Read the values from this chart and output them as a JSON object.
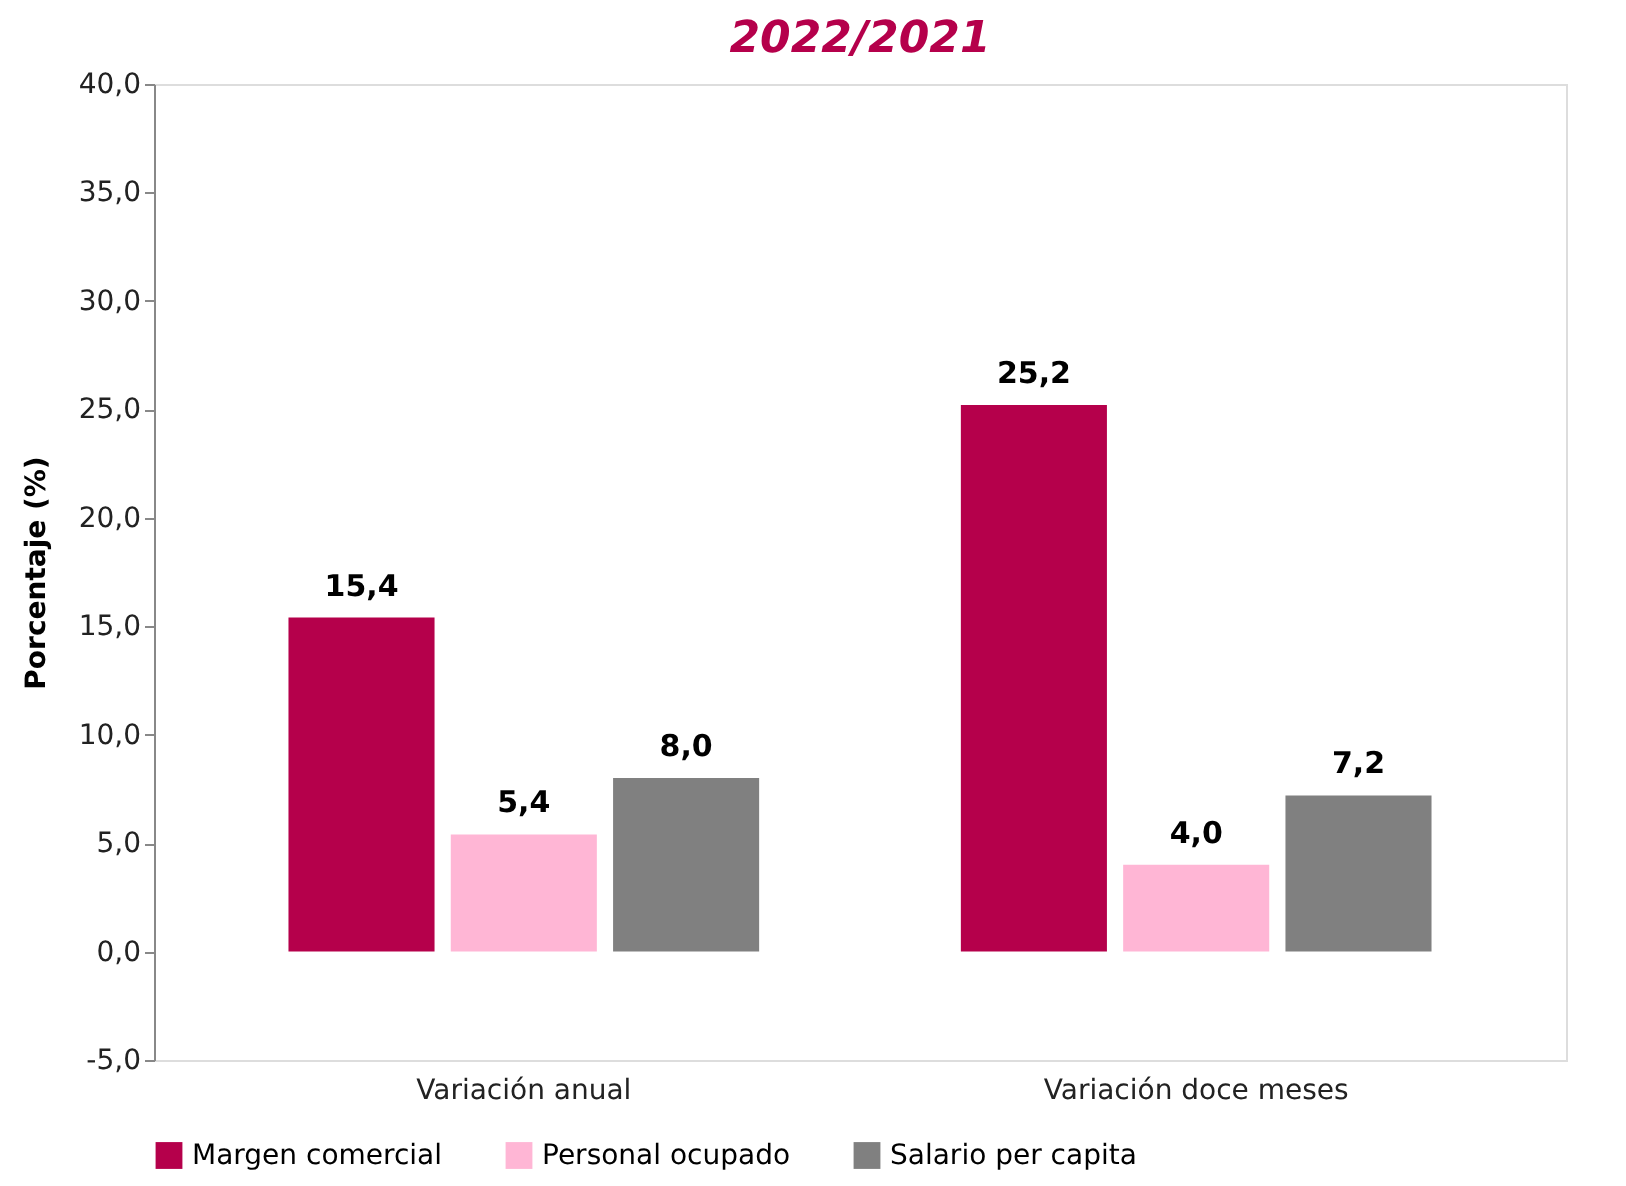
{
  "chart_data": {
    "type": "bar",
    "title": "2022/2021",
    "ylabel": "Porcentaje (%)",
    "categories": [
      "Variación anual",
      "Variación doce meses"
    ],
    "series": [
      {
        "name": "Margen comercial",
        "color": "#b5004b",
        "values": [
          15.4,
          25.2
        ],
        "value_labels": [
          "15,4",
          "25,2"
        ]
      },
      {
        "name": "Personal ocupado",
        "color": "#ffb6d5",
        "values": [
          5.4,
          4.0
        ],
        "value_labels": [
          "5,4",
          "4,0"
        ]
      },
      {
        "name": "Salario per capita",
        "color": "#808080",
        "values": [
          8.0,
          7.2
        ],
        "value_labels": [
          "8,0",
          "7,2"
        ]
      }
    ],
    "ylim": [
      -5,
      40
    ],
    "yticks": [
      {
        "value": -5,
        "label": "-5,0"
      },
      {
        "value": 0,
        "label": "0,0"
      },
      {
        "value": 5,
        "label": "5,0"
      },
      {
        "value": 10,
        "label": "10,0"
      },
      {
        "value": 15,
        "label": "15,0"
      },
      {
        "value": 20,
        "label": "20,0"
      },
      {
        "value": 25,
        "label": "25,0"
      },
      {
        "value": 30,
        "label": "30,0"
      },
      {
        "value": 35,
        "label": "35,0"
      },
      {
        "value": 40,
        "label": "40,0"
      }
    ],
    "grid": false,
    "legend": "bottom"
  }
}
